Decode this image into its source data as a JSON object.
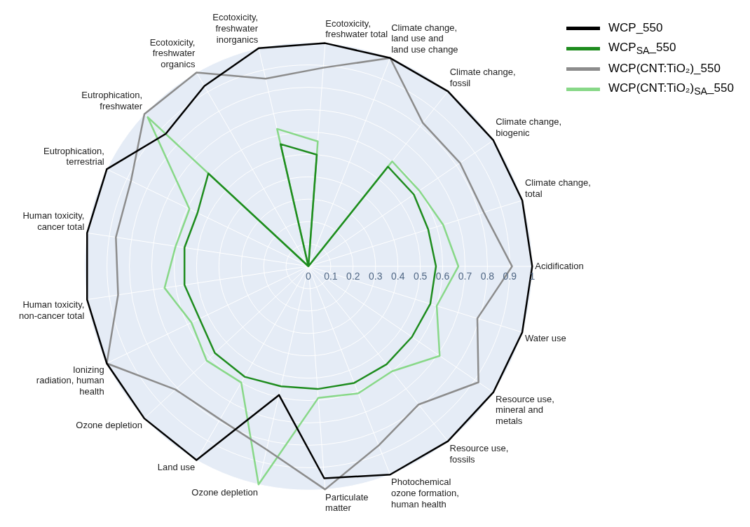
{
  "chart_data": {
    "type": "radar",
    "categories": [
      "Ecotoxicity, freshwater total",
      "Climate change, land use and land use change",
      "Climate change, fossil",
      "Climate change, biogenic",
      "Climate change, total",
      "Acidification",
      "Water use",
      "Resource use, mineral and metals",
      "Resource use, fossils",
      "Photochemical ozone formation, human health",
      "Particulate matter",
      "Ozone depletion",
      "Land use",
      "Ozone depletion",
      "Ionizing radiation, human health",
      "Human toxicity, non-cancer total",
      "Human toxicity, cancer total",
      "Eutrophication, terrestrial",
      "Eutrophication, freshwater",
      "Ecotoxicity, freshwater organics",
      "Ecotoxicity, freshwater inorganics"
    ],
    "series": [
      {
        "name": "WCP_550",
        "color": "#000000",
        "values": [
          1,
          1,
          1,
          1,
          1,
          1,
          1,
          1,
          1,
          1,
          0.95,
          0.59,
          1,
          1,
          1,
          1,
          1,
          1,
          0.87,
          0.93,
          1
        ]
      },
      {
        "name": "WCP$_{SA}$_550",
        "color": "#1e8c1e",
        "values": [
          0.5,
          0,
          0.57,
          0.57,
          0.56,
          0.57,
          0.57,
          0.56,
          0.56,
          0.56,
          0.55,
          0.55,
          0.57,
          0.57,
          0.54,
          0.56,
          0.56,
          0.55,
          0.61,
          0,
          0.56
        ]
      },
      {
        "name": "WCP(CNT:TiO₂)_550",
        "color": "#8c8c8c",
        "values": [
          0.89,
          1,
          0.82,
          0.82,
          0.82,
          0.91,
          0.79,
          0.92,
          0.79,
          0.86,
          1,
          0.84,
          0.79,
          0.81,
          1,
          0.86,
          0.87,
          0.88,
          1,
          1,
          0.86
        ]
      },
      {
        "name": "WCP(CNT:TiO₂)$_{SA}$_550",
        "color": "#88d888",
        "values": [
          0.56,
          0,
          0.6,
          0.6,
          0.63,
          0.67,
          0.6,
          0.71,
          0.6,
          0.61,
          0.59,
          1,
          0.6,
          0.62,
          0.58,
          0.65,
          0.6,
          0.59,
          0.98,
          0,
          0.63
        ]
      }
    ],
    "ylim": [
      0,
      1
    ],
    "yticks": [
      0,
      0.1,
      0.2,
      0.3,
      0.4,
      0.5,
      0.6,
      0.7,
      0.8,
      0.9,
      1
    ],
    "grid": true,
    "legend": "top right"
  }
}
